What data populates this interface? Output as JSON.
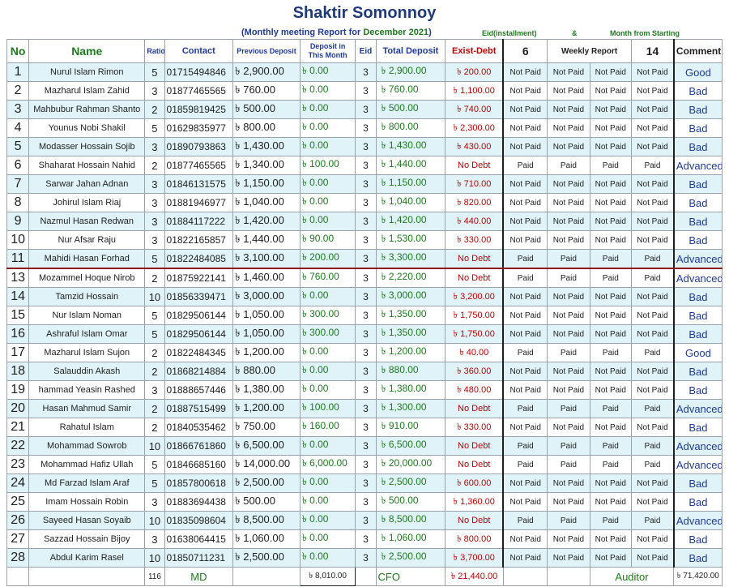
{
  "title": "Shaktir Somonnoy",
  "subtitle": {
    "prefix": "(Monthly meeting Report for ",
    "month": "December 2021",
    "suffix": ")",
    "eid": "Eid(installment)",
    "amp": "&",
    "month_start": "Month from Starting"
  },
  "headers": {
    "no": "No",
    "name": "Name",
    "ratio": "Ratio",
    "contact": "Contact",
    "previous_deposit": "Previous Deposit",
    "deposit_month": "Deposit in This Month",
    "eid": "Eid",
    "total_deposit": "Total Deposit",
    "exist_debt": "Exist-Debt",
    "eid_count": "6",
    "weekly_report": "Weekly Report",
    "month_count": "14",
    "comment": "Comment"
  },
  "rows": [
    {
      "no": "1",
      "name": "Nurul Islam Rimon",
      "ratio": "5",
      "contact": "01715494846",
      "prev": "৳ 2,900.00",
      "dep": "৳ 0.00",
      "eid": "3",
      "total": "৳ 2,900.00",
      "debt": "৳ 200.00",
      "w1": "Not Paid",
      "w2": "Not Paid",
      "w3": "Not Paid",
      "w4": "Not Paid",
      "comment": "Good"
    },
    {
      "no": "2",
      "name": "Mazharul Islam Zahid",
      "ratio": "3",
      "contact": "01877465565",
      "prev": "৳ 760.00",
      "dep": "৳ 0.00",
      "eid": "3",
      "total": "৳ 760.00",
      "debt": "৳ 1,100.00",
      "w1": "Not Paid",
      "w2": "Not Paid",
      "w3": "Not Paid",
      "w4": "Not Paid",
      "comment": "Bad"
    },
    {
      "no": "3",
      "name": "Mahbubur Rahman Shanto",
      "ratio": "2",
      "contact": "01859819425",
      "prev": "৳ 500.00",
      "dep": "৳ 0.00",
      "eid": "3",
      "total": "৳ 500.00",
      "debt": "৳ 740.00",
      "w1": "Not Paid",
      "w2": "Not Paid",
      "w3": "Not Paid",
      "w4": "Not Paid",
      "comment": "Bad"
    },
    {
      "no": "4",
      "name": "Younus Nobi Shakil",
      "ratio": "5",
      "contact": "01629835977",
      "prev": "৳ 800.00",
      "dep": "৳ 0.00",
      "eid": "3",
      "total": "৳ 800.00",
      "debt": "৳ 2,300.00",
      "w1": "Not Paid",
      "w2": "Not Paid",
      "w3": "Not Paid",
      "w4": "Not Paid",
      "comment": "Bad"
    },
    {
      "no": "5",
      "name": "Modasser Hossain Sojib",
      "ratio": "3",
      "contact": "01890793863",
      "prev": "৳ 1,430.00",
      "dep": "৳ 0.00",
      "eid": "3",
      "total": "৳ 1,430.00",
      "debt": "৳ 430.00",
      "w1": "Not Paid",
      "w2": "Not Paid",
      "w3": "Not Paid",
      "w4": "Not Paid",
      "comment": "Bad"
    },
    {
      "no": "6",
      "name": "Shaharat Hossain Nahid",
      "ratio": "2",
      "contact": "01877465565",
      "prev": "৳ 1,340.00",
      "dep": "৳ 100.00",
      "eid": "3",
      "total": "৳ 1,440.00",
      "debt": "No Debt",
      "w1": "Paid",
      "w2": "Paid",
      "w3": "Paid",
      "w4": "Paid",
      "comment": "Advanced"
    },
    {
      "no": "7",
      "name": "Sarwar Jahan Adnan",
      "ratio": "3",
      "contact": "01846131575",
      "prev": "৳ 1,150.00",
      "dep": "৳ 0.00",
      "eid": "3",
      "total": "৳ 1,150.00",
      "debt": "৳ 710.00",
      "w1": "Not Paid",
      "w2": "Not Paid",
      "w3": "Not Paid",
      "w4": "Not Paid",
      "comment": "Bad"
    },
    {
      "no": "8",
      "name": "Johirul Islam Riaj",
      "ratio": "3",
      "contact": "01881946977",
      "prev": "৳ 1,040.00",
      "dep": "৳ 0.00",
      "eid": "3",
      "total": "৳ 1,040.00",
      "debt": "৳ 820.00",
      "w1": "Not Paid",
      "w2": "Not Paid",
      "w3": "Not Paid",
      "w4": "Not Paid",
      "comment": "Bad"
    },
    {
      "no": "9",
      "name": "Nazmul Hasan Redwan",
      "ratio": "3",
      "contact": "01884117222",
      "prev": "৳ 1,420.00",
      "dep": "৳ 0.00",
      "eid": "3",
      "total": "৳ 1,420.00",
      "debt": "৳ 440.00",
      "w1": "Not Paid",
      "w2": "Not Paid",
      "w3": "Not Paid",
      "w4": "Not Paid",
      "comment": "Bad"
    },
    {
      "no": "10",
      "name": "Nur Afsar Raju",
      "ratio": "3",
      "contact": "01822165857",
      "prev": "৳ 1,440.00",
      "dep": "৳ 90.00",
      "eid": "3",
      "total": "৳ 1,530.00",
      "debt": "৳ 330.00",
      "w1": "Not Paid",
      "w2": "Not Paid",
      "w3": "Not Paid",
      "w4": "Not Paid",
      "comment": "Bad"
    },
    {
      "no": "11",
      "name": "Mahidi Hasan Forhad",
      "ratio": "5",
      "contact": "01822484085",
      "prev": "৳ 3,100.00",
      "dep": "৳ 200.00",
      "eid": "3",
      "total": "৳ 3,300.00",
      "debt": "No Debt",
      "w1": "Paid",
      "w2": "Paid",
      "w3": "Paid",
      "w4": "Paid",
      "comment": "Advanced"
    },
    {
      "no": "13",
      "name": "Mozammel Hoque Nirob",
      "ratio": "2",
      "contact": "01875922141",
      "prev": "৳ 1,460.00",
      "dep": "৳ 760.00",
      "eid": "3",
      "total": "৳ 2,220.00",
      "debt": "No Debt",
      "w1": "Paid",
      "w2": "Paid",
      "w3": "Paid",
      "w4": "Paid",
      "comment": "Advanced"
    },
    {
      "no": "14",
      "name": "Tamzid Hossain",
      "ratio": "10",
      "contact": "01856339471",
      "prev": "৳ 3,000.00",
      "dep": "৳ 0.00",
      "eid": "3",
      "total": "৳ 3,000.00",
      "debt": "৳ 3,200.00",
      "w1": "Not Paid",
      "w2": "Not Paid",
      "w3": "Not Paid",
      "w4": "Not Paid",
      "comment": "Bad"
    },
    {
      "no": "15",
      "name": "Nur Islam Noman",
      "ratio": "5",
      "contact": "01829506144",
      "prev": "৳ 1,050.00",
      "dep": "৳ 300.00",
      "eid": "3",
      "total": "৳ 1,350.00",
      "debt": "৳ 1,750.00",
      "w1": "Not Paid",
      "w2": "Not Paid",
      "w3": "Not Paid",
      "w4": "Not Paid",
      "comment": "Bad"
    },
    {
      "no": "16",
      "name": "Ashraful Islam Omar",
      "ratio": "5",
      "contact": "01829506144",
      "prev": "৳ 1,050.00",
      "dep": "৳ 300.00",
      "eid": "3",
      "total": "৳ 1,350.00",
      "debt": "৳ 1,750.00",
      "w1": "Not Paid",
      "w2": "Not Paid",
      "w3": "Not Paid",
      "w4": "Not Paid",
      "comment": "Bad"
    },
    {
      "no": "17",
      "name": "Mazharul Islam Sujon",
      "ratio": "2",
      "contact": "01822484345",
      "prev": "৳ 1,200.00",
      "dep": "৳ 0.00",
      "eid": "3",
      "total": "৳ 1,200.00",
      "debt": "৳ 40.00",
      "w1": "Paid",
      "w2": "Paid",
      "w3": "Paid",
      "w4": "Paid",
      "comment": "Good"
    },
    {
      "no": "18",
      "name": "Salauddin Akash",
      "ratio": "2",
      "contact": "01868214884",
      "prev": "৳ 880.00",
      "dep": "৳ 0.00",
      "eid": "3",
      "total": "৳ 880.00",
      "debt": "৳ 360.00",
      "w1": "Not Paid",
      "w2": "Not Paid",
      "w3": "Not Paid",
      "w4": "Not Paid",
      "comment": "Bad"
    },
    {
      "no": "19",
      "name": "hammad Yeasin Rashed",
      "ratio": "3",
      "contact": "01888657446",
      "prev": "৳ 1,380.00",
      "dep": "৳ 0.00",
      "eid": "3",
      "total": "৳ 1,380.00",
      "debt": "৳ 480.00",
      "w1": "Not Paid",
      "w2": "Not Paid",
      "w3": "Not Paid",
      "w4": "Not Paid",
      "comment": "Bad"
    },
    {
      "no": "20",
      "name": "Hasan Mahmud Samir",
      "ratio": "2",
      "contact": "01887515499",
      "prev": "৳ 1,200.00",
      "dep": "৳ 100.00",
      "eid": "3",
      "total": "৳ 1,300.00",
      "debt": "No Debt",
      "w1": "Paid",
      "w2": "Paid",
      "w3": "Paid",
      "w4": "Paid",
      "comment": "Advanced"
    },
    {
      "no": "21",
      "name": "Rahatul Islam",
      "ratio": "2",
      "contact": "01840535462",
      "prev": "৳ 750.00",
      "dep": "৳ 160.00",
      "eid": "3",
      "total": "৳ 910.00",
      "debt": "৳ 330.00",
      "w1": "Not Paid",
      "w2": "Not Paid",
      "w3": "Not Paid",
      "w4": "Not Paid",
      "comment": "Bad"
    },
    {
      "no": "22",
      "name": "Mohammad Sowrob",
      "ratio": "10",
      "contact": "01866761860",
      "prev": "৳ 6,500.00",
      "dep": "৳ 0.00",
      "eid": "3",
      "total": "৳ 6,500.00",
      "debt": "No Debt",
      "w1": "Paid",
      "w2": "Paid",
      "w3": "Paid",
      "w4": "Paid",
      "comment": "Advanced"
    },
    {
      "no": "23",
      "name": "Mohammad Hafiz Ullah",
      "ratio": "5",
      "contact": "01846685160",
      "prev": "৳ 14,000.00",
      "dep": "৳ 6,000.00",
      "eid": "3",
      "total": "৳ 20,000.00",
      "debt": "No Debt",
      "w1": "Paid",
      "w2": "Paid",
      "w3": "Paid",
      "w4": "Paid",
      "comment": "Advanced"
    },
    {
      "no": "24",
      "name": "Md Farzad Islam Araf",
      "ratio": "5",
      "contact": "01857800618",
      "prev": "৳ 2,500.00",
      "dep": "৳ 0.00",
      "eid": "3",
      "total": "৳ 2,500.00",
      "debt": "৳ 600.00",
      "w1": "Not Paid",
      "w2": "Not Paid",
      "w3": "Not Paid",
      "w4": "Not Paid",
      "comment": "Bad"
    },
    {
      "no": "25",
      "name": "Imam Hossain Robin",
      "ratio": "3",
      "contact": "01883694438",
      "prev": "৳ 500.00",
      "dep": "৳ 0.00",
      "eid": "3",
      "total": "৳ 500.00",
      "debt": "৳ 1,360.00",
      "w1": "Not Paid",
      "w2": "Not Paid",
      "w3": "Not Paid",
      "w4": "Not Paid",
      "comment": "Bad"
    },
    {
      "no": "26",
      "name": "Sayeed Hasan Soyaib",
      "ratio": "10",
      "contact": "01835098604",
      "prev": "৳ 8,500.00",
      "dep": "৳ 0.00",
      "eid": "3",
      "total": "৳ 8,500.00",
      "debt": "No Debt",
      "w1": "Paid",
      "w2": "Paid",
      "w3": "Paid",
      "w4": "Paid",
      "comment": "Advanced"
    },
    {
      "no": "27",
      "name": "Sazzad Hossain Bijoy",
      "ratio": "3",
      "contact": "01638064415",
      "prev": "৳ 1,060.00",
      "dep": "৳ 0.00",
      "eid": "3",
      "total": "৳ 1,060.00",
      "debt": "৳ 800.00",
      "w1": "Not Paid",
      "w2": "Not Paid",
      "w3": "Not Paid",
      "w4": "Not Paid",
      "comment": "Bad"
    },
    {
      "no": "28",
      "name": "Abdul Karim Rasel",
      "ratio": "10",
      "contact": "01850711231",
      "prev": "৳ 2,500.00",
      "dep": "৳ 0.00",
      "eid": "3",
      "total": "৳ 2,500.00",
      "debt": "৳ 3,700.00",
      "w1": "Not Paid",
      "w2": "Not Paid",
      "w3": "Not Paid",
      "w4": "Not Paid",
      "comment": "Bad"
    }
  ],
  "footer": {
    "ratio_total": "116",
    "md_label": "MD",
    "deposit_total": "৳ 8,010.00",
    "cfo_label": "CFO",
    "debt_total": "৳ 21,440.00",
    "auditor_label": "Auditor",
    "grand_total": "৳ 71,420.00"
  },
  "colors": {
    "title": "#1f3a7a",
    "green": "#1e7a1e",
    "red": "#c00000",
    "blue": "#1f3a9a",
    "stripe": "#dff3f8",
    "separator": "#8b1a1a"
  }
}
